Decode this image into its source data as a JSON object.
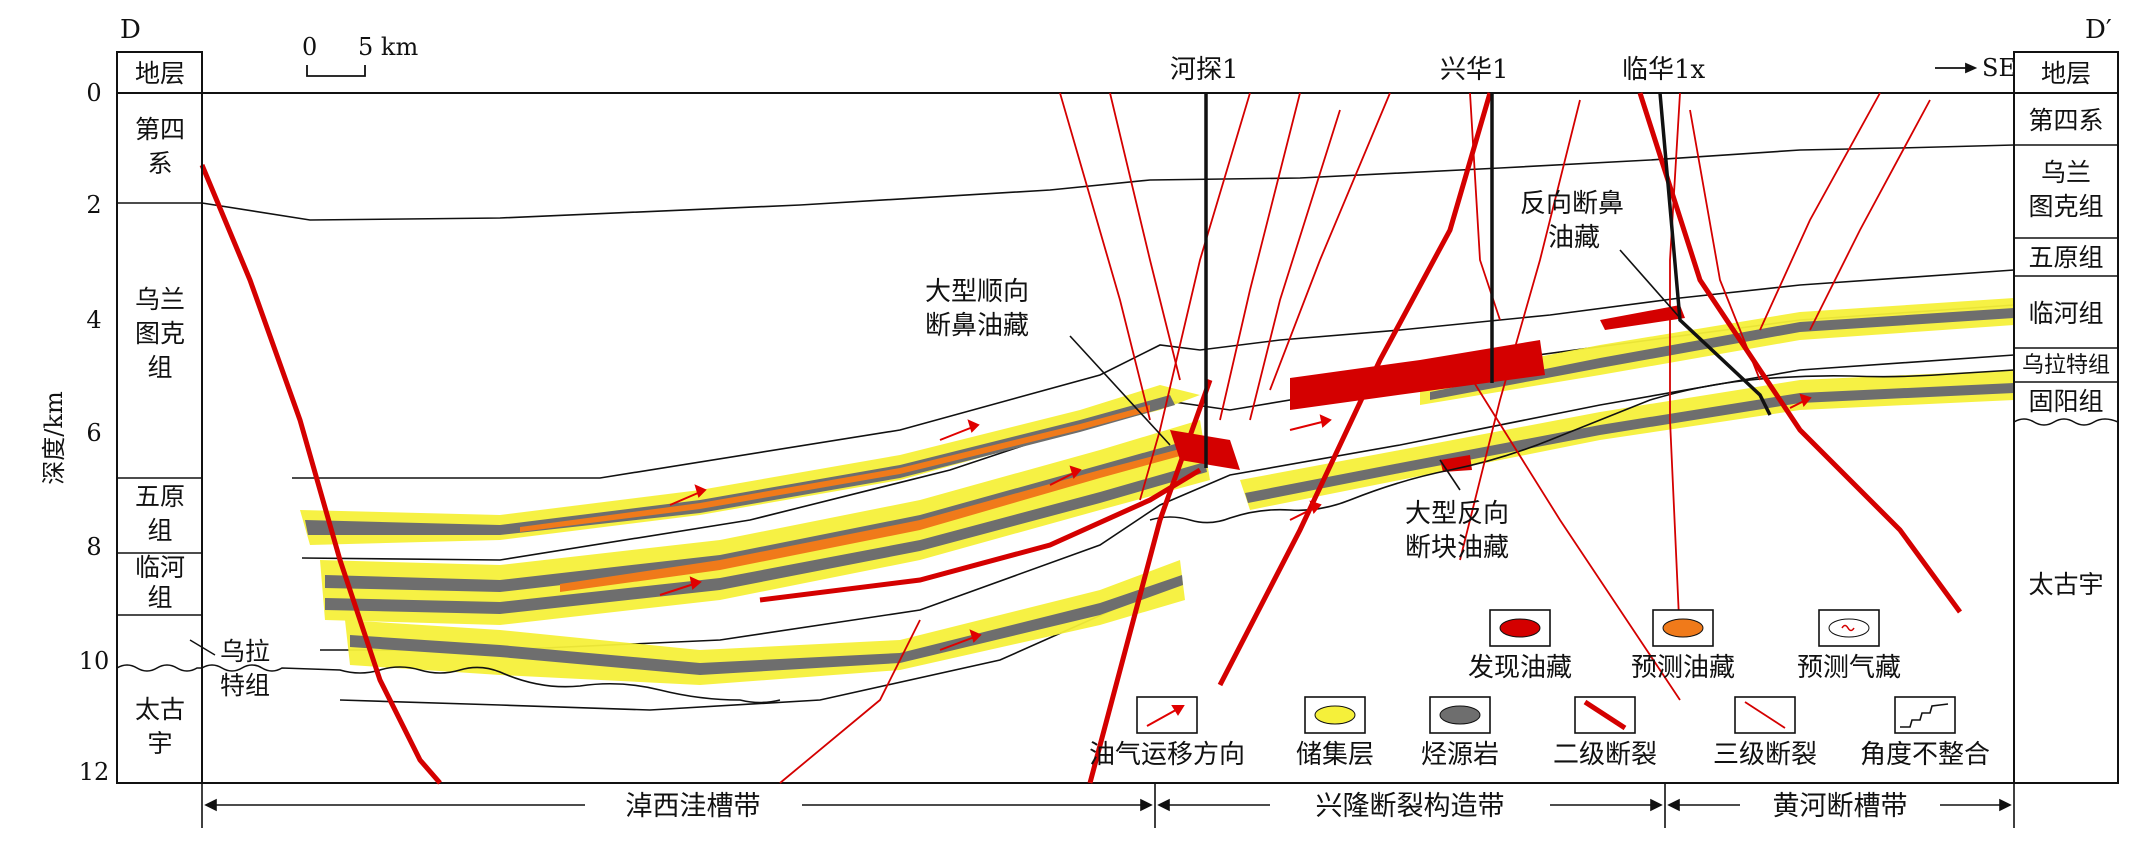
{
  "section": {
    "start_label": "D",
    "end_label": "D′",
    "direction_label": "SE",
    "scale_zero": "0",
    "scale_value": "5 km"
  },
  "depth_axis": {
    "label": "深度/km",
    "ticks": [
      "0",
      "2",
      "4",
      "6",
      "8",
      "10",
      "12"
    ],
    "range_km": [
      0,
      12
    ]
  },
  "left_column": {
    "title": "地层",
    "units": [
      {
        "name": "第四系",
        "lines": [
          "第四",
          "系"
        ]
      },
      {
        "name": "乌兰图克组",
        "lines": [
          "乌兰",
          "图克",
          "组"
        ]
      },
      {
        "name": "五原组",
        "lines": [
          "五原",
          "组"
        ]
      },
      {
        "name": "临河组",
        "lines": [
          "临河",
          "组"
        ]
      },
      {
        "name": "乌拉特组",
        "lines": [
          "乌拉",
          "特组"
        ]
      },
      {
        "name": "太古宇",
        "lines": [
          "太古",
          "宇"
        ]
      }
    ]
  },
  "right_column": {
    "title": "地层",
    "units": [
      {
        "name": "第四系",
        "lines": [
          "第四系"
        ]
      },
      {
        "name": "乌兰图克组",
        "lines": [
          "乌兰",
          "图克组"
        ]
      },
      {
        "name": "五原组",
        "lines": [
          "五原组"
        ]
      },
      {
        "name": "临河组",
        "lines": [
          "临河组"
        ]
      },
      {
        "name": "乌拉特组",
        "lines": [
          "乌拉特组"
        ]
      },
      {
        "name": "固阳组",
        "lines": [
          "固阳组"
        ]
      },
      {
        "name": "太古宇",
        "lines": [
          "太古宇"
        ]
      }
    ]
  },
  "wells": [
    {
      "name": "河探1"
    },
    {
      "name": "兴华1"
    },
    {
      "name": "临华1x"
    }
  ],
  "annotations": [
    {
      "lines": [
        "大型顺向",
        "断鼻油藏"
      ]
    },
    {
      "lines": [
        "反向断鼻",
        "油藏"
      ]
    },
    {
      "lines": [
        "大型反向",
        "断块油藏"
      ]
    }
  ],
  "legend": [
    {
      "label": "发现油藏",
      "icon": "discovered-oil-icon",
      "color": "#d40000"
    },
    {
      "label": "预测油藏",
      "icon": "predicted-oil-icon",
      "color": "#f07a1a"
    },
    {
      "label": "预测气藏",
      "icon": "predicted-gas-icon",
      "color": "#d40000"
    },
    {
      "label": "油气运移方向",
      "icon": "migration-arrow-icon",
      "color": "#e00000"
    },
    {
      "label": "储集层",
      "icon": "reservoir-icon",
      "color": "#f5f03a"
    },
    {
      "label": "烃源岩",
      "icon": "source-rock-icon",
      "color": "#6e6e6e"
    },
    {
      "label": "二级断裂",
      "icon": "secondary-fault-icon",
      "color": "#d40000"
    },
    {
      "label": "三级断裂",
      "icon": "tertiary-fault-icon",
      "color": "#d40000"
    },
    {
      "label": "角度不整合",
      "icon": "unconformity-icon",
      "color": "#111111"
    }
  ],
  "zones": [
    {
      "name": "淖西洼槽带"
    },
    {
      "name": "兴隆断裂构造带"
    },
    {
      "name": "黄河断槽带"
    }
  ],
  "colors": {
    "fault": "#d40000",
    "reservoir": "#f5f03a",
    "source_rock": "#6e6e6e",
    "predicted_oil": "#f07a1a",
    "discovered_oil": "#d40000",
    "line": "#111111"
  }
}
